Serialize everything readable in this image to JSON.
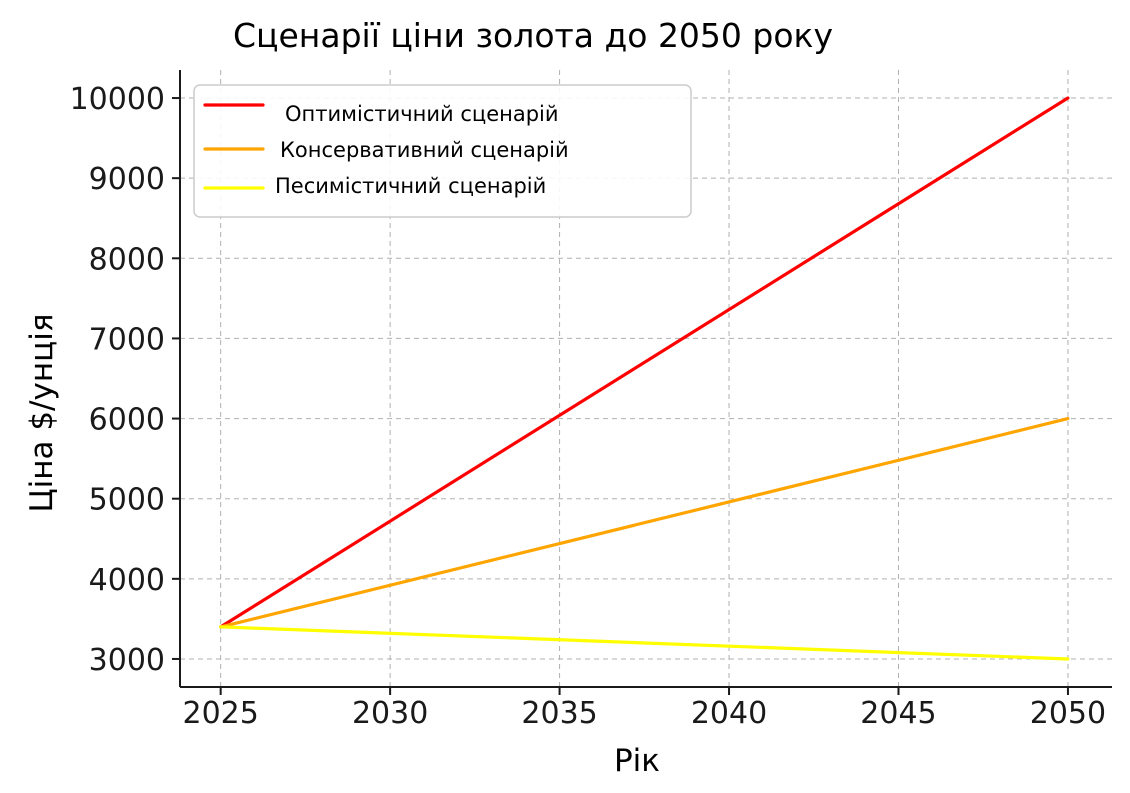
{
  "chart_data": {
    "type": "line",
    "title": "Сценарії ціни золота до 2050 року",
    "xlabel": "Рік",
    "ylabel": "Ціна $/унція",
    "x": [
      2025,
      2050
    ],
    "xlim": [
      2023.8,
      2051.3
    ],
    "ylim": [
      2650,
      10350
    ],
    "xticks": [
      2025,
      2030,
      2035,
      2040,
      2045,
      2050
    ],
    "yticks": [
      3000,
      4000,
      5000,
      6000,
      7000,
      8000,
      9000,
      10000
    ],
    "grid": true,
    "legend_position": "top-left",
    "series": [
      {
        "name": "Оптимістичний сценарій",
        "values": [
          3400,
          10000
        ],
        "color": "#ff0000"
      },
      {
        "name": "Консервативний сценарій",
        "values": [
          3400,
          6000
        ],
        "color": "#ffa500"
      },
      {
        "name": "Песимістичний сценарій",
        "values": [
          3400,
          3000
        ],
        "color": "#ffff00"
      }
    ]
  }
}
